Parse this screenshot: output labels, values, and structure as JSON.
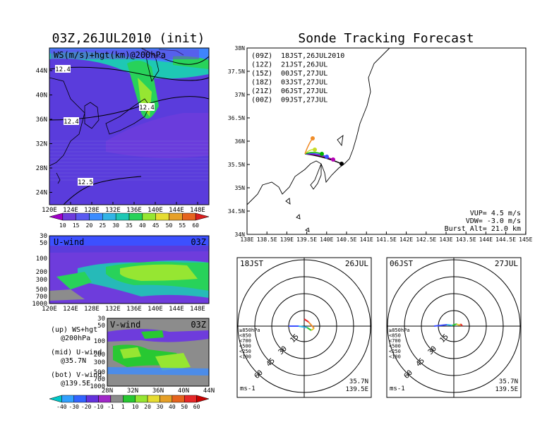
{
  "left_title": "03Z,26JUL2010 (init)",
  "right_title": "Sonde Tracking Forecast",
  "top_map": {
    "label": "WS(m/s)+hgt(km)@200hPa",
    "lat_ticks": [
      "44N",
      "40N",
      "36N",
      "32N",
      "28N",
      "24N"
    ],
    "lon_ticks": [
      "120E",
      "124E",
      "128E",
      "132E",
      "136E",
      "140E",
      "144E",
      "148E"
    ],
    "contour_labels": [
      "12.4",
      "12.4",
      "12.4",
      "12.5"
    ]
  },
  "ws_colorbar": {
    "labels": [
      "10",
      "15",
      "20",
      "25",
      "30",
      "35",
      "40",
      "45",
      "50",
      "55",
      "60"
    ],
    "colors": [
      "#a000c8",
      "#6e3cdc",
      "#5a5af0",
      "#3c8cff",
      "#32b4e6",
      "#1ec8b4",
      "#28d25a",
      "#96e632",
      "#e6dc32",
      "#e6a028",
      "#e6641e",
      "#dc1e1e"
    ]
  },
  "u_panel": {
    "label": "U-wind",
    "time": "03Z",
    "levels": [
      "30",
      "50",
      "100",
      "200",
      "300",
      "500",
      "700",
      "1000"
    ],
    "lon_ticks": [
      "120E",
      "124E",
      "128E",
      "132E",
      "136E",
      "140E",
      "144E",
      "148E"
    ]
  },
  "v_panel": {
    "label": "V-wind",
    "time": "03Z",
    "levels": [
      "30",
      "50",
      "100",
      "200",
      "300",
      "500",
      "700",
      "1000"
    ],
    "lat_ticks": [
      "28N",
      "32N",
      "36N",
      "40N",
      "44N"
    ]
  },
  "legend_notes": [
    {
      "a": "(up) WS+hgt",
      "b": "@200hPa"
    },
    {
      "a": "(mid) U-wind",
      "b": "@35.7N"
    },
    {
      "a": "(bot) V-wind",
      "b": "@139.5E"
    }
  ],
  "wind_colorbar": {
    "labels": [
      "-40",
      "-30",
      "-20",
      "-10",
      "-1",
      "1",
      "10",
      "20",
      "30",
      "40",
      "50",
      "60"
    ],
    "colors": [
      "#00c8c8",
      "#32a0ff",
      "#3264ff",
      "#6432dc",
      "#a028c8",
      "#8c8c8c",
      "#28c832",
      "#96e632",
      "#e6dc32",
      "#e6a028",
      "#e6641e",
      "#e62828",
      "#c80000"
    ]
  },
  "track_map": {
    "lat_ticks": [
      "38N",
      "37.5N",
      "37N",
      "36.5N",
      "36N",
      "35.5N",
      "35N",
      "34.5N",
      "34N"
    ],
    "lon_ticks": [
      "138E",
      "138.5E",
      "139E",
      "139.5E",
      "140E",
      "140.5E",
      "141E",
      "141.5E",
      "142E",
      "142.5E",
      "143E",
      "143.5E",
      "144E",
      "144.5E",
      "145E"
    ],
    "launches": [
      {
        "z": "(09Z)",
        "time": "18JST,26JUL2010",
        "color": "#000000"
      },
      {
        "z": "(12Z)",
        "time": "21JST,26JUL",
        "color": "#b400b4"
      },
      {
        "z": "(15Z)",
        "time": "00JST,27JUL",
        "color": "#3c50ff"
      },
      {
        "z": "(18Z)",
        "time": "03JST,27JUL",
        "color": "#00b400"
      },
      {
        "z": "(21Z)",
        "time": "06JST,27JUL",
        "color": "#c8dc28"
      },
      {
        "z": "(00Z)",
        "time": "09JST,27JUL",
        "color": "#f08c28"
      }
    ],
    "params": [
      "VUP= 4.5 m/s",
      "VDW= -3.0 m/s",
      "Burst Alt= 21.0 km"
    ]
  },
  "polar_left": {
    "time": "18JST",
    "date": "26JUL",
    "rings": [
      "15",
      "30",
      "45",
      "60"
    ],
    "unit": "ms-1",
    "lat": "35.7N",
    "lon": "139.5E",
    "levels": [
      {
        "t": "≥850hPa",
        "c": "#e6282a"
      },
      {
        "t": "<850",
        "c": "#f08c28"
      },
      {
        "t": "<700",
        "c": "#e6c828"
      },
      {
        "t": "<500",
        "c": "#28c832"
      },
      {
        "t": "<250",
        "c": "#32b4e6"
      },
      {
        "t": "<100",
        "c": "#3c50ff"
      }
    ]
  },
  "polar_right": {
    "time": "06JST",
    "date": "27JUL",
    "rings": [
      "15",
      "30",
      "45",
      "60"
    ],
    "unit": "ms-1",
    "lat": "35.7N",
    "lon": "139.5E",
    "levels": [
      {
        "t": "≥850hPa",
        "c": "#e6282a"
      },
      {
        "t": "<850",
        "c": "#f08c28"
      },
      {
        "t": "<700",
        "c": "#e6c828"
      },
      {
        "t": "<500",
        "c": "#28c832"
      },
      {
        "t": "<250",
        "c": "#32b4e6"
      },
      {
        "t": "<100",
        "c": "#3c50ff"
      }
    ]
  }
}
